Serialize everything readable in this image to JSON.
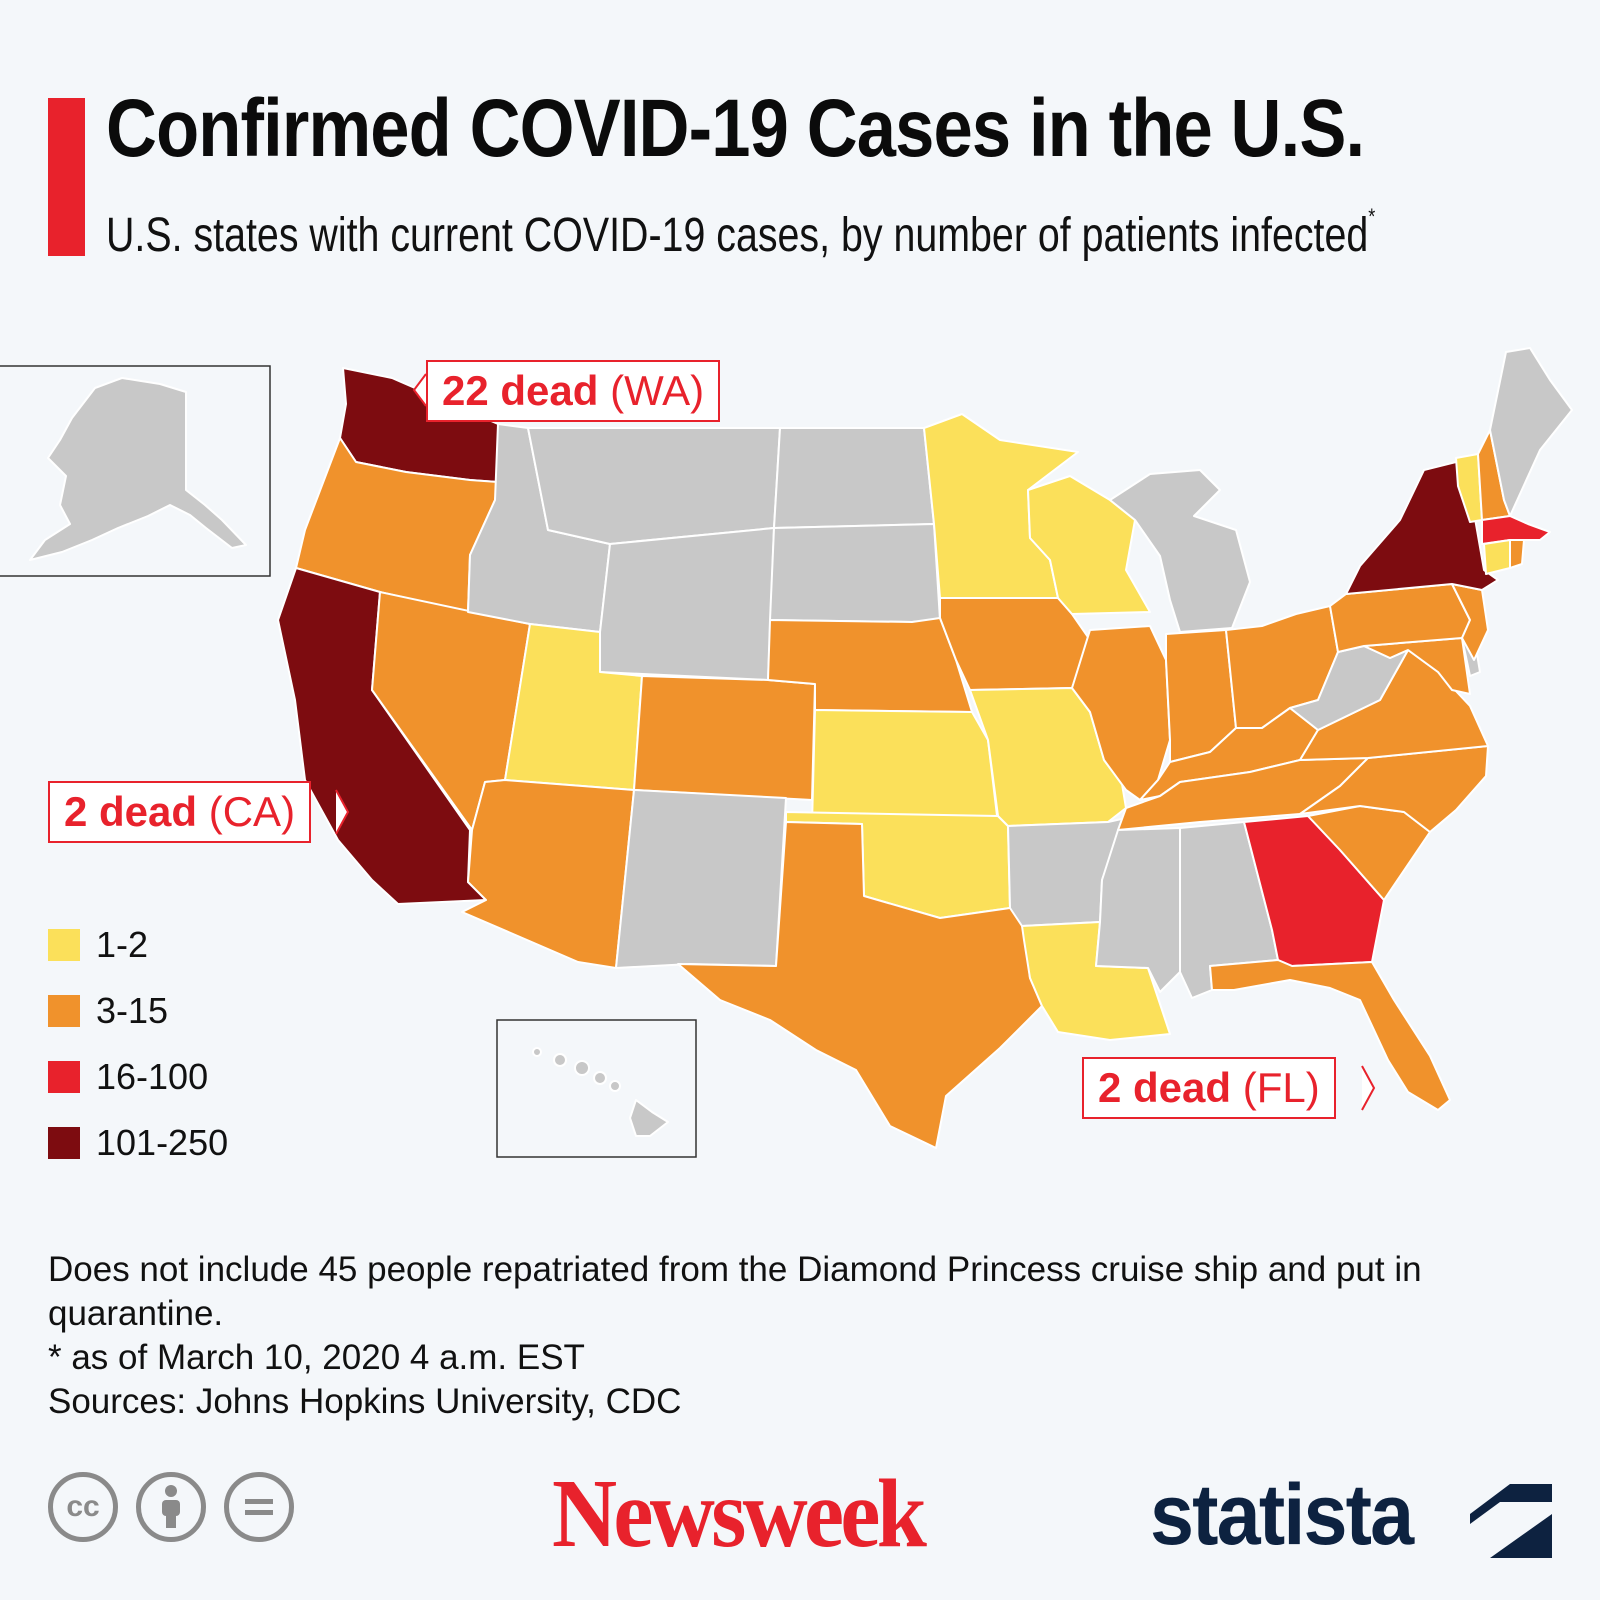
{
  "header": {
    "title": "Confirmed COVID-19 Cases in the U.S.",
    "subtitle": "U.S. states with current COVID-19 cases, by number of patients infected",
    "subtitle_marker": "*"
  },
  "colors": {
    "accent": "#e8222c",
    "no_cases": "#c8c8c8",
    "bin_1_2": "#fbe05a",
    "bin_3_15": "#f0922c",
    "bin_16_100": "#e8222c",
    "bin_101_250": "#7d0c10"
  },
  "legend": [
    {
      "label": "1-2",
      "color": "#fbe05a"
    },
    {
      "label": "3-15",
      "color": "#f0922c"
    },
    {
      "label": "16-100",
      "color": "#e8222c"
    },
    {
      "label": "101-250",
      "color": "#7d0c10"
    }
  ],
  "callouts": {
    "wa": {
      "bold": "22 dead",
      "state": "(WA)"
    },
    "ca": {
      "bold": "2 dead",
      "state": "(CA)"
    },
    "fl": {
      "bold": "2 dead",
      "state": "(FL)"
    }
  },
  "state_bins": {
    "WA": "101-250",
    "OR": "3-15",
    "CA": "101-250",
    "NV": "3-15",
    "ID": "none",
    "MT": "none",
    "WY": "none",
    "UT": "1-2",
    "AZ": "3-15",
    "CO": "3-15",
    "NM": "none",
    "ND": "none",
    "SD": "none",
    "NE": "3-15",
    "KS": "1-2",
    "OK": "1-2",
    "TX": "3-15",
    "MN": "1-2",
    "IA": "3-15",
    "MO": "1-2",
    "AR": "none",
    "LA": "1-2",
    "WI": "1-2",
    "IL": "3-15",
    "MI": "none",
    "IN": "3-15",
    "OH": "3-15",
    "KY": "3-15",
    "TN": "3-15",
    "MS": "none",
    "AL": "none",
    "GA": "16-100",
    "FL": "3-15",
    "SC": "3-15",
    "NC": "3-15",
    "VA": "3-15",
    "WV": "none",
    "MD": "3-15",
    "DE": "none",
    "PA": "3-15",
    "NJ": "3-15",
    "NY": "101-250",
    "CT": "1-2",
    "RI": "3-15",
    "MA": "16-100",
    "VT": "1-2",
    "NH": "3-15",
    "ME": "none",
    "AK": "none",
    "HI": "none"
  },
  "footnote": {
    "line1": "Does not include 45 people repatriated from the Diamond Princess cruise ship and put in quarantine.",
    "line2": "* as of March 10, 2020 4 a.m. EST",
    "line3": "Sources: Johns Hopkins University, CDC"
  },
  "footer": {
    "cc_icons": [
      "cc",
      "by",
      "nd"
    ],
    "cc_by_icon": "person-icon",
    "cc_nd_icon": "equals-icon",
    "brand_newsweek": "Newsweek",
    "brand_statista": "statista"
  }
}
